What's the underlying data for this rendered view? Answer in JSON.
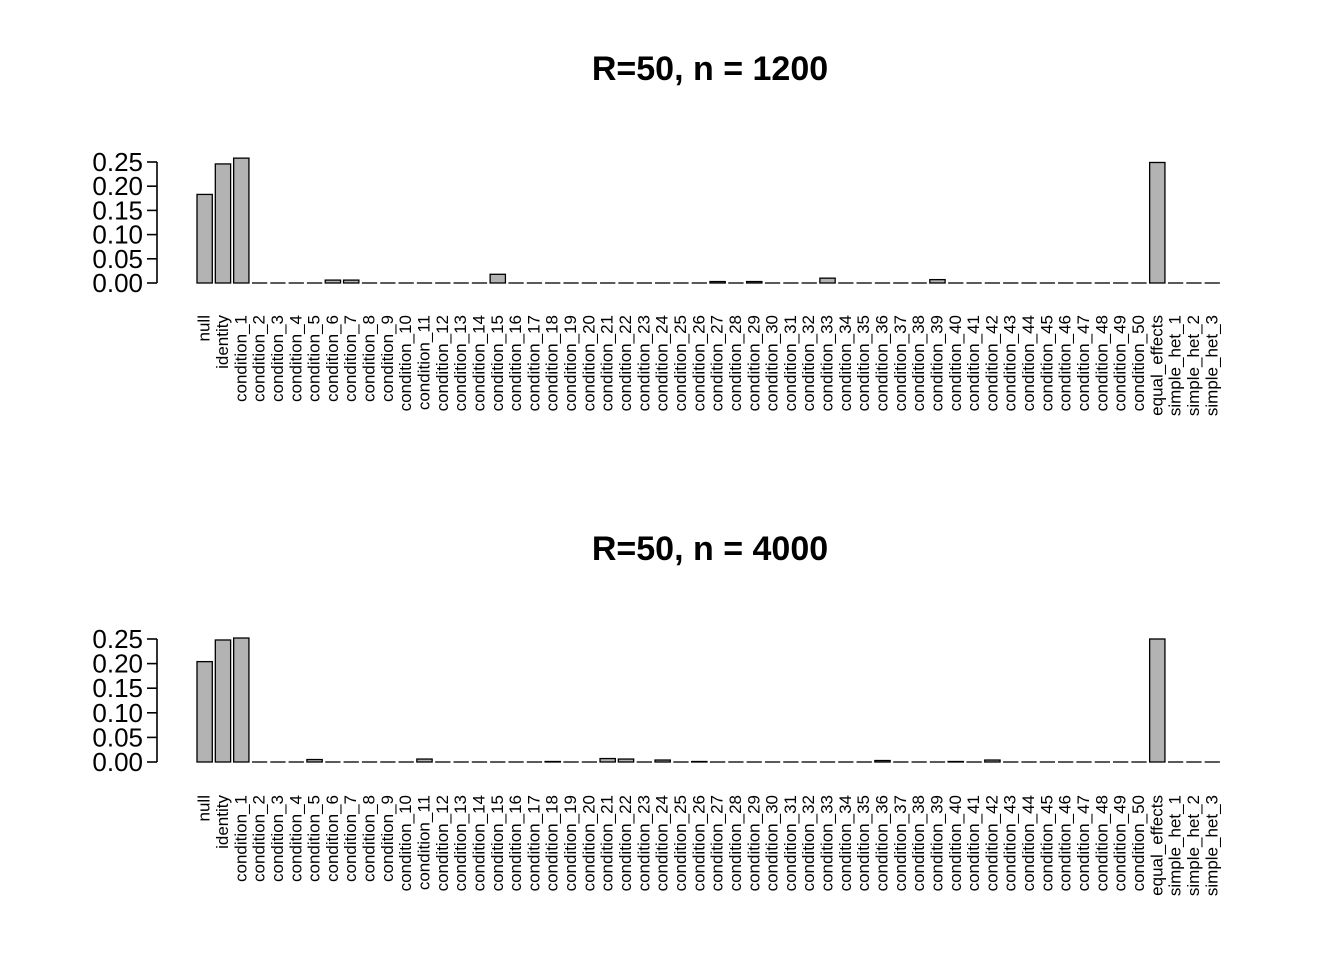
{
  "chart_data": [
    {
      "type": "bar",
      "title": "R=50, n = 1200",
      "xlabel": "",
      "ylabel": "",
      "ylim": [
        0,
        0.25
      ],
      "yticks": [
        "0.00",
        "0.05",
        "0.10",
        "0.15",
        "0.20",
        "0.25"
      ],
      "bar_color": "#b3b3b3",
      "categories": [
        "null",
        "identity",
        "condition_1",
        "condition_2",
        "condition_3",
        "condition_4",
        "condition_5",
        "condition_6",
        "condition_7",
        "condition_8",
        "condition_9",
        "condition_10",
        "condition_11",
        "condition_12",
        "condition_13",
        "condition_14",
        "condition_15",
        "condition_16",
        "condition_17",
        "condition_18",
        "condition_19",
        "condition_20",
        "condition_21",
        "condition_22",
        "condition_23",
        "condition_24",
        "condition_25",
        "condition_26",
        "condition_27",
        "condition_28",
        "condition_29",
        "condition_30",
        "condition_31",
        "condition_32",
        "condition_33",
        "condition_34",
        "condition_35",
        "condition_36",
        "condition_37",
        "condition_38",
        "condition_39",
        "condition_40",
        "condition_41",
        "condition_42",
        "condition_43",
        "condition_44",
        "condition_45",
        "condition_46",
        "condition_47",
        "condition_48",
        "condition_49",
        "condition_50",
        "equal_effects",
        "simple_het_1",
        "simple_het_2",
        "simple_het_3"
      ],
      "values": [
        0.183,
        0.246,
        0.258,
        0,
        0,
        0,
        0,
        0.006,
        0.006,
        0,
        0,
        0,
        0,
        0,
        0,
        0,
        0.018,
        0,
        0,
        0,
        0,
        0,
        0,
        0,
        0,
        0,
        0,
        0,
        0.003,
        0,
        0.003,
        0,
        0,
        0,
        0.01,
        0,
        0,
        0,
        0,
        0,
        0.007,
        0,
        0,
        0,
        0,
        0,
        0,
        0,
        0,
        0,
        0,
        0,
        0.249,
        0,
        0,
        0
      ]
    },
    {
      "type": "bar",
      "title": "R=50, n = 4000",
      "xlabel": "",
      "ylabel": "",
      "ylim": [
        0,
        0.25
      ],
      "yticks": [
        "0.00",
        "0.05",
        "0.10",
        "0.15",
        "0.20",
        "0.25"
      ],
      "bar_color": "#b3b3b3",
      "categories": [
        "null",
        "identity",
        "condition_1",
        "condition_2",
        "condition_3",
        "condition_4",
        "condition_5",
        "condition_6",
        "condition_7",
        "condition_8",
        "condition_9",
        "condition_10",
        "condition_11",
        "condition_12",
        "condition_13",
        "condition_14",
        "condition_15",
        "condition_16",
        "condition_17",
        "condition_18",
        "condition_19",
        "condition_20",
        "condition_21",
        "condition_22",
        "condition_23",
        "condition_24",
        "condition_25",
        "condition_26",
        "condition_27",
        "condition_28",
        "condition_29",
        "condition_30",
        "condition_31",
        "condition_32",
        "condition_33",
        "condition_34",
        "condition_35",
        "condition_36",
        "condition_37",
        "condition_38",
        "condition_39",
        "condition_40",
        "condition_41",
        "condition_42",
        "condition_43",
        "condition_44",
        "condition_45",
        "condition_46",
        "condition_47",
        "condition_48",
        "condition_49",
        "condition_50",
        "equal_effects",
        "simple_het_1",
        "simple_het_2",
        "simple_het_3"
      ],
      "values": [
        0.204,
        0.248,
        0.252,
        0,
        0,
        0,
        0.005,
        0,
        0,
        0,
        0,
        0,
        0.006,
        0,
        0,
        0,
        0,
        0,
        0,
        0.001,
        0,
        0,
        0.007,
        0.006,
        0,
        0.004,
        0,
        0.001,
        0,
        0,
        0,
        0,
        0,
        0,
        0,
        0,
        0,
        0.003,
        0,
        0,
        0,
        0.001,
        0,
        0.004,
        0,
        0,
        0,
        0,
        0,
        0,
        0,
        0,
        0.25,
        0,
        0,
        0
      ]
    }
  ]
}
